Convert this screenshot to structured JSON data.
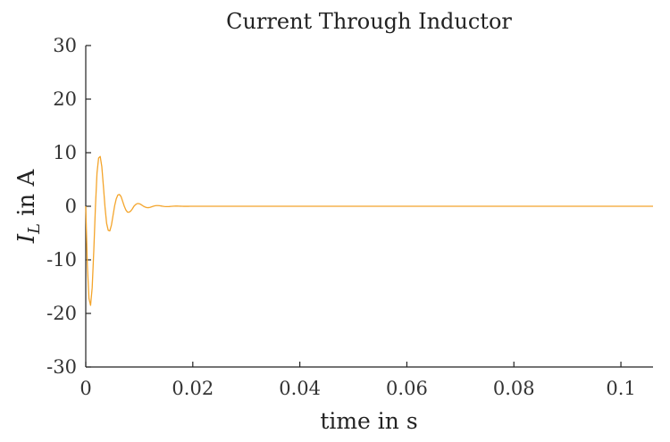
{
  "chart_data": {
    "type": "line",
    "title": "Current Through Inductor",
    "xlabel": "time in s",
    "ylabel": {
      "symbol": "I",
      "subscript": "L",
      "rest": " in A"
    },
    "xlim": [
      0,
      0.106
    ],
    "ylim": [
      -30,
      30
    ],
    "x_ticks": [
      0,
      0.02,
      0.04,
      0.06,
      0.08,
      0.1
    ],
    "x_tick_labels": [
      "0",
      "0.02",
      "0.04",
      "0.06",
      "0.08",
      "0.1"
    ],
    "y_ticks": [
      -30,
      -20,
      -10,
      0,
      10,
      20,
      30
    ],
    "y_tick_labels": [
      "-30",
      "-20",
      "-10",
      "0",
      "10",
      "20",
      "30"
    ],
    "grid": false,
    "series": [
      {
        "color": "#f4a52c",
        "x": [
          0,
          0.0003,
          0.0006,
          0.0009,
          0.0012,
          0.0015,
          0.0018,
          0.0021,
          0.0024,
          0.0027,
          0.003,
          0.0033,
          0.0036,
          0.0039,
          0.0042,
          0.0045,
          0.0048,
          0.0051,
          0.0054,
          0.0057,
          0.006,
          0.0063,
          0.0066,
          0.0069,
          0.0072,
          0.0075,
          0.0078,
          0.0081,
          0.0084,
          0.0087,
          0.009,
          0.0093,
          0.0096,
          0.0099,
          0.0102,
          0.0105,
          0.0108,
          0.0111,
          0.0114,
          0.0117,
          0.012,
          0.0123,
          0.0126,
          0.0129,
          0.0132,
          0.0135,
          0.0138,
          0.0141,
          0.0144,
          0.0147,
          0.015,
          0.0153,
          0.0156,
          0.0159,
          0.0162,
          0.0165,
          0.0168,
          0.0171,
          0.0174,
          0.0177,
          0.018,
          0.0183,
          0.0186,
          0.0189,
          0.0192,
          0.0195,
          0.0198,
          0.0201,
          0.0204,
          0.0207,
          0.021,
          0.0213,
          0.0216,
          0.0219,
          0.0222,
          0.0225,
          0.0228,
          0.0231,
          0.0234,
          0.0237,
          0.024,
          0.0243,
          0.0246,
          0.0249,
          0.0252,
          0.0255,
          0.0258,
          0.0261,
          0.0264,
          0.0267,
          0.027,
          0.0273,
          0.0276,
          0.0279,
          0.0282,
          0.0285,
          0.0288,
          0.0291,
          0.0294,
          0.0297,
          0.03,
          0.04,
          0.06,
          0.08,
          0.1,
          0.106
        ],
        "y": [
          0,
          -11.1,
          -17.2,
          -18.5,
          -15.2,
          -8.3,
          -0.3,
          6.2,
          9.0,
          9.3,
          7.4,
          3.7,
          -0.2,
          -3.2,
          -4.5,
          -4.6,
          -3.5,
          -1.7,
          0.1,
          1.4,
          2.1,
          2.2,
          1.8,
          0.9,
          0.0,
          -0.7,
          -1.1,
          -1.1,
          -0.9,
          -0.5,
          0.0,
          0.3,
          0.5,
          0.5,
          0.4,
          0.2,
          0.0,
          -0.15,
          -0.25,
          -0.26,
          -0.2,
          -0.1,
          0.0,
          0.08,
          0.12,
          0.12,
          0.1,
          0.05,
          0.0,
          -0.04,
          -0.06,
          -0.06,
          -0.05,
          -0.02,
          0.0,
          0.02,
          0.03,
          0.03,
          0.02,
          0.01,
          0.0,
          -0.01,
          -0.01,
          -0.01,
          -0.01,
          0.0,
          0.0,
          0.0,
          0.0,
          0.0,
          0.0,
          0.0,
          0.0,
          0.0,
          0.0,
          0.0,
          0.0,
          0.0,
          0.0,
          0.0,
          0.0,
          0.0,
          0.0,
          0.0,
          0.0,
          0.0,
          0.0,
          0.0,
          0.0,
          0.0,
          0.0,
          0.0,
          0.0,
          0.0,
          0.0,
          0.0,
          0.0,
          0.0,
          0.0,
          0.0,
          0.0,
          0.0,
          0.0,
          0.0,
          0.0,
          0.0
        ]
      }
    ]
  }
}
